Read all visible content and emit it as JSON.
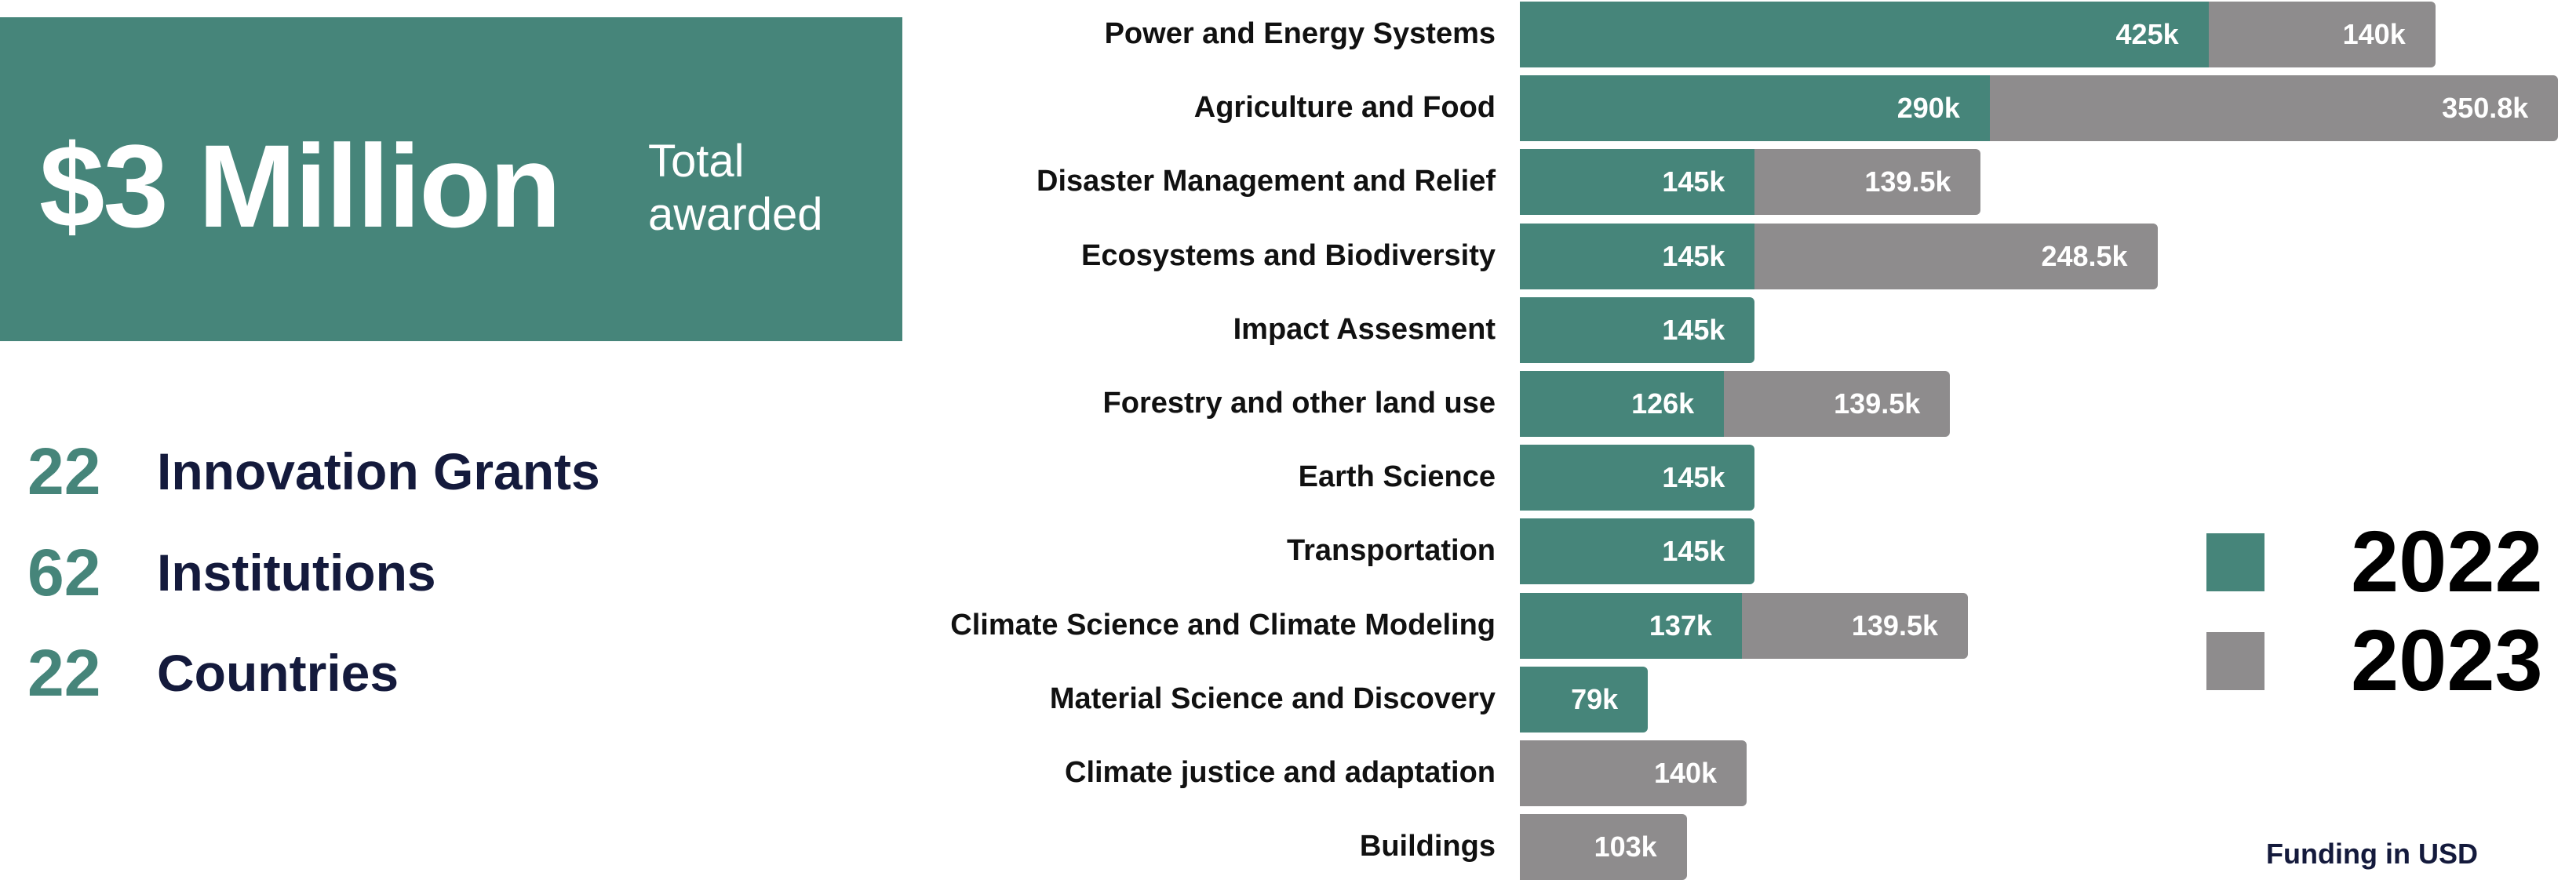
{
  "hero": {
    "amount": "$3 Million",
    "caption_line1": "Total",
    "caption_line2": "awarded"
  },
  "stats": [
    {
      "number": "22",
      "label": "Innovation Grants"
    },
    {
      "number": "62",
      "label": "Institutions"
    },
    {
      "number": "22",
      "label": "Countries"
    }
  ],
  "colors": {
    "2022": "#46857a",
    "2023": "#8e8c8d",
    "accent_text": "#141a3c"
  },
  "chart_data": {
    "type": "bar",
    "orientation": "horizontal",
    "stacked": true,
    "categories": [
      "Power and Energy Systems",
      "Agriculture and Food",
      "Disaster Management and Relief",
      "Ecosystems and Biodiversity",
      "Impact Assesment",
      "Forestry and other land use",
      "Earth Science",
      "Transportation",
      "Climate Science and Climate Modeling",
      "Material Science and Discovery",
      "Climate justice and adaptation",
      "Buildings"
    ],
    "series": [
      {
        "name": "2022",
        "values": [
          425,
          290,
          145,
          145,
          145,
          126,
          145,
          145,
          137,
          79,
          null,
          null
        ],
        "labels": [
          "425k",
          "290k",
          "145k",
          "145k",
          "145k",
          "126k",
          "145k",
          "145k",
          "137k",
          "79k",
          null,
          null
        ]
      },
      {
        "name": "2023",
        "values": [
          140,
          350.8,
          139.5,
          248.5,
          null,
          139.5,
          null,
          null,
          139.5,
          null,
          140,
          103
        ],
        "labels": [
          "140k",
          "350.8k",
          "139.5k",
          "248.5k",
          null,
          "139.5k",
          null,
          null,
          "139.5k",
          null,
          "140k",
          "103k"
        ]
      }
    ],
    "unit": "thousand USD",
    "legend": {
      "position": "right",
      "entries": [
        "2022",
        "2023"
      ]
    },
    "note": "Funding in USD",
    "grid": false
  }
}
